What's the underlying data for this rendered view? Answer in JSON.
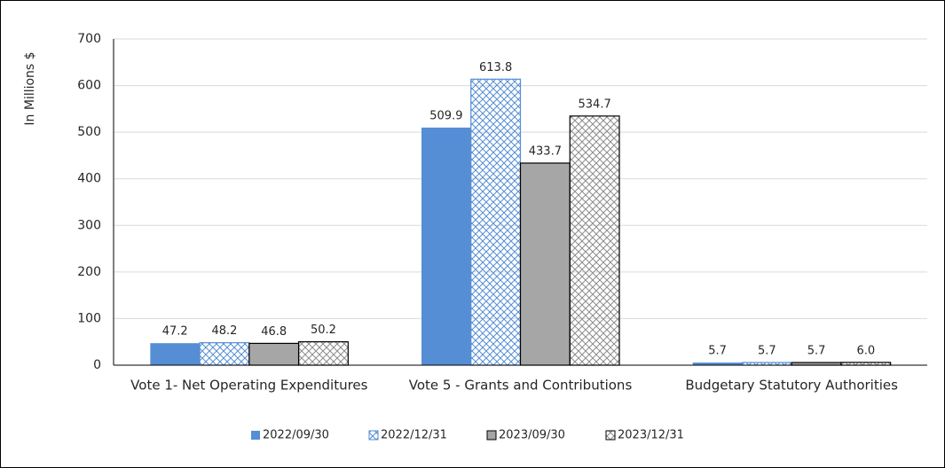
{
  "chart_data": {
    "type": "bar",
    "y_label": "In Millions $",
    "categories": [
      "Vote 1- Net Operating Expenditures",
      "Vote 5 - Grants and Contributions",
      "Budgetary Statutory Authorities"
    ],
    "series": [
      {
        "name": "2022/09/30",
        "color": "#558ed5",
        "pattern": false,
        "values": [
          47.2,
          509.9,
          5.7
        ],
        "value_labels": [
          "47.2",
          "509.9",
          "5.7"
        ]
      },
      {
        "name": "2022/12/31",
        "color": "#558ed5",
        "pattern": true,
        "values": [
          48.2,
          613.8,
          5.7
        ],
        "value_labels": [
          "48.2",
          "613.8",
          "5.7"
        ]
      },
      {
        "name": "2023/09/30",
        "color": "#a6a6a6",
        "pattern": false,
        "values": [
          46.8,
          433.7,
          5.7
        ],
        "value_labels": [
          "46.8",
          "433.7",
          "5.7"
        ]
      },
      {
        "name": "2023/12/31",
        "color": "#a6a6a6",
        "pattern": true,
        "values": [
          50.2,
          534.7,
          6
        ],
        "value_labels": [
          "50.2",
          "534.7",
          "6.0"
        ]
      }
    ],
    "ylim": [
      0,
      700
    ],
    "yticks": [
      0,
      100,
      200,
      300,
      400,
      500,
      600,
      700
    ],
    "grid": true,
    "legend": "bottom"
  }
}
